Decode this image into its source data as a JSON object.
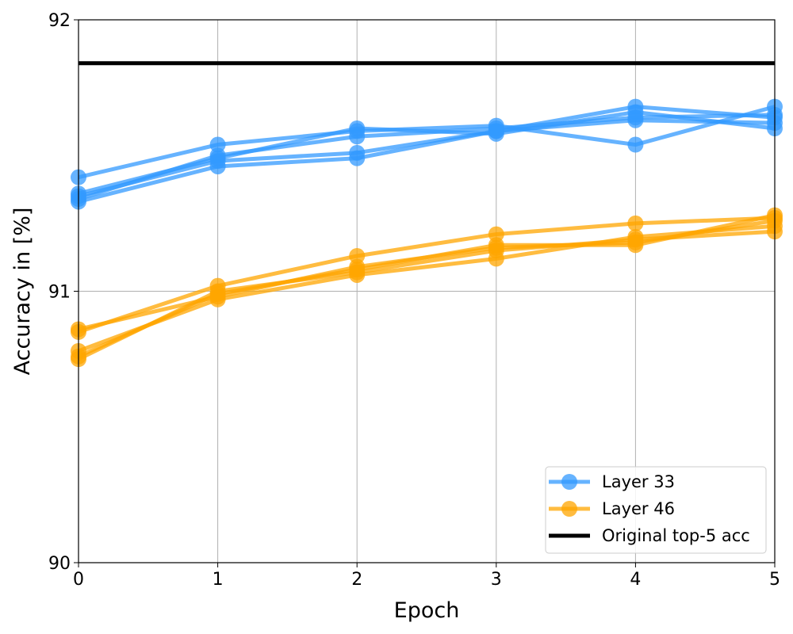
{
  "chart_data": {
    "type": "line",
    "title": "",
    "xlabel": "Epoch",
    "ylabel": "Accuracy in [%]",
    "xlim": [
      0,
      5
    ],
    "ylim": [
      90,
      92
    ],
    "xticks": [
      "0",
      "1",
      "2",
      "3",
      "4",
      "5"
    ],
    "yticks": [
      "90",
      "91",
      "92"
    ],
    "grid": true,
    "legend_position": "bottom-right",
    "x": [
      0,
      1,
      2,
      3,
      4,
      5
    ],
    "groups": [
      {
        "name": "Layer 33",
        "color": "#3399ff",
        "runs": [
          [
            91.42,
            91.54,
            91.59,
            91.61,
            91.54,
            91.68
          ],
          [
            91.36,
            91.49,
            91.6,
            91.58,
            91.66,
            91.6
          ],
          [
            91.33,
            91.46,
            91.49,
            91.59,
            91.68,
            91.64
          ],
          [
            91.35,
            91.48,
            91.51,
            91.59,
            91.63,
            91.62
          ],
          [
            91.34,
            91.5,
            91.57,
            91.6,
            91.64,
            91.65
          ]
        ]
      },
      {
        "name": "Layer 46",
        "color": "#ffa500",
        "runs": [
          [
            90.85,
            91.02,
            91.13,
            91.21,
            91.25,
            91.27
          ],
          [
            90.86,
            90.98,
            91.09,
            91.16,
            91.18,
            91.26
          ],
          [
            90.78,
            90.97,
            91.06,
            91.12,
            91.2,
            91.24
          ],
          [
            90.76,
            90.99,
            91.08,
            91.17,
            91.17,
            91.28
          ],
          [
            90.75,
            91.0,
            91.07,
            91.15,
            91.19,
            91.22
          ]
        ]
      }
    ],
    "reference_line": {
      "name": "Original top-5 acc",
      "value": 91.84,
      "color": "#000000"
    }
  }
}
